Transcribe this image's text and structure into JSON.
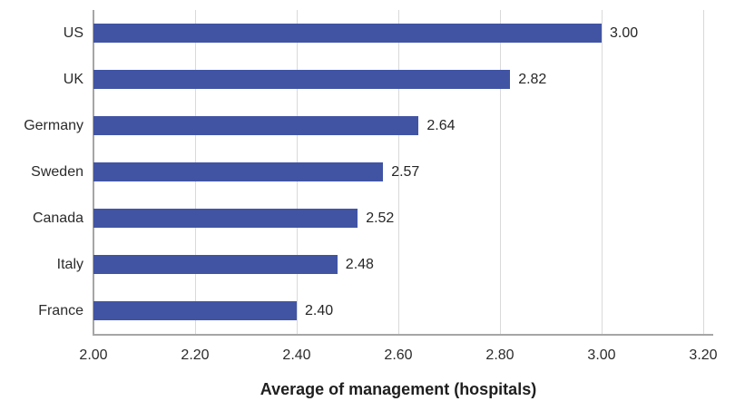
{
  "chart_data": {
    "type": "bar",
    "orientation": "horizontal",
    "title": "",
    "xlabel": "Average of management (hospitals)",
    "ylabel": "",
    "categories": [
      "US",
      "UK",
      "Germany",
      "Sweden",
      "Canada",
      "Italy",
      "France"
    ],
    "values": [
      3.0,
      2.82,
      2.64,
      2.57,
      2.52,
      2.48,
      2.4
    ],
    "value_labels": [
      "3.00",
      "2.82",
      "2.64",
      "2.57",
      "2.52",
      "2.48",
      "2.40"
    ],
    "xlim": [
      2.0,
      3.2
    ],
    "xticks": [
      2.0,
      2.2,
      2.4,
      2.6,
      2.8,
      3.0,
      3.2
    ],
    "xtick_labels": [
      "2.00",
      "2.20",
      "2.40",
      "2.60",
      "2.80",
      "3.00",
      "3.20"
    ],
    "grid": "vertical",
    "legend": "none",
    "colors": {
      "bar": "#4154A4",
      "gridline": "#d9d9d9",
      "axis_line": "#a6a6a6",
      "text": "#2b2b2b"
    }
  }
}
